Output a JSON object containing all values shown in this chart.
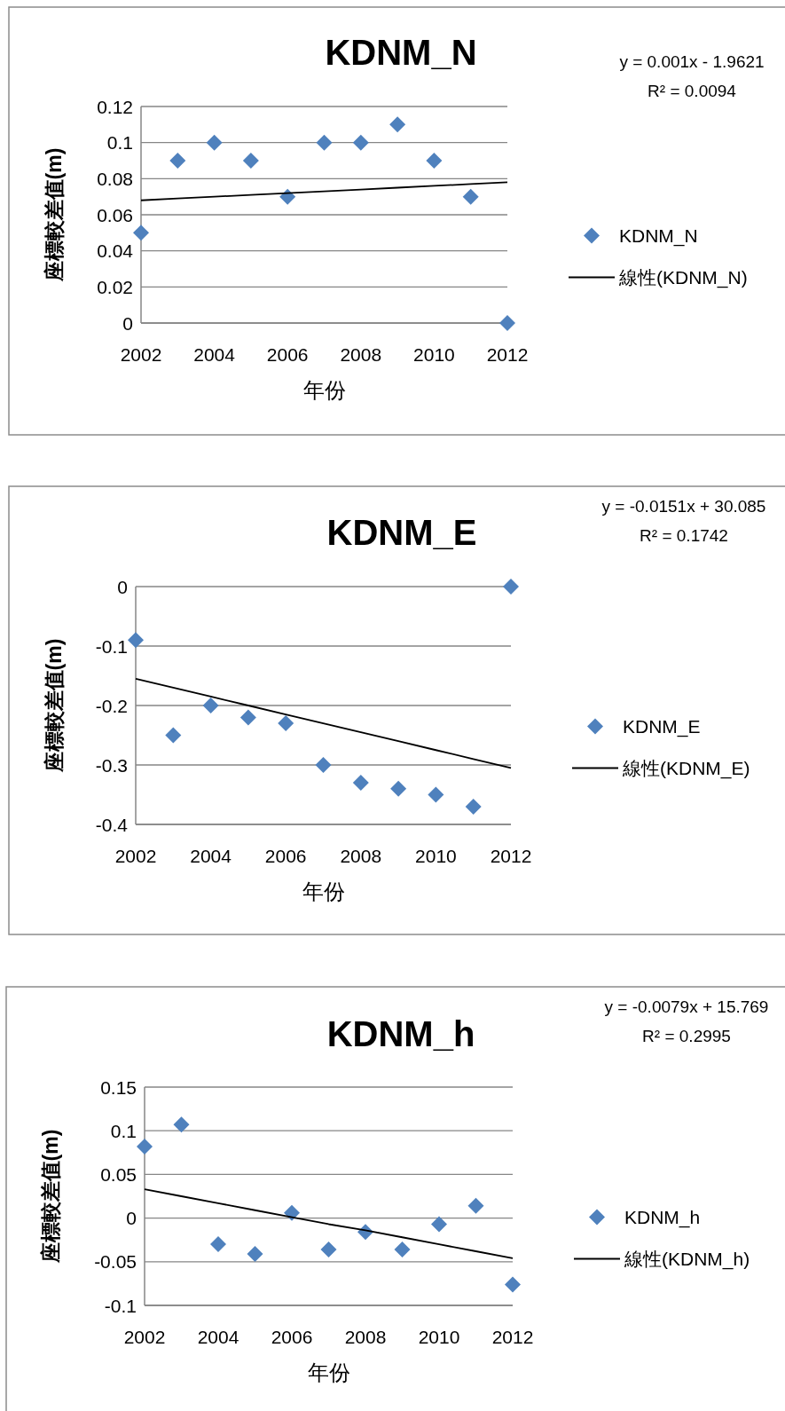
{
  "chart_data": [
    {
      "type": "scatter",
      "title": "KDNM_N",
      "xlabel": "年份",
      "ylabel": "座標較差值(m)",
      "annotations": [
        "y = 0.001x - 1.9621",
        "R² = 0.0094"
      ],
      "x": [
        2002,
        2003,
        2004,
        2005,
        2006,
        2007,
        2008,
        2009,
        2010,
        2011,
        2012
      ],
      "series": [
        {
          "name": "KDNM_N",
          "type": "scatter",
          "color": "#4f81bd",
          "marker": "diamond",
          "values": [
            0.05,
            0.09,
            0.1,
            0.09,
            0.07,
            0.1,
            0.1,
            0.11,
            0.09,
            0.07,
            0
          ]
        },
        {
          "name": "線性(KDNM_N)",
          "type": "line",
          "color": "#000000",
          "marker": "none",
          "line_style": "solid",
          "values": [
            0.068,
            0.069,
            0.07,
            0.071,
            0.072,
            0.073,
            0.074,
            0.075,
            0.076,
            0.077,
            0.078
          ]
        }
      ],
      "xlim": [
        2002,
        2012
      ],
      "xticks": [
        2002,
        2004,
        2006,
        2008,
        2010,
        2012
      ],
      "ylim": [
        0,
        0.12
      ],
      "yticks": [
        0,
        0.02,
        0.04,
        0.06,
        0.08,
        0.1,
        0.12
      ],
      "grid": "y",
      "legend": "right"
    },
    {
      "type": "scatter",
      "title": "KDNM_E",
      "xlabel": "年份",
      "ylabel": "座標較差值(m)",
      "annotations": [
        "y = -0.0151x + 30.085",
        "R² = 0.1742"
      ],
      "x": [
        2002,
        2003,
        2004,
        2005,
        2006,
        2007,
        2008,
        2009,
        2010,
        2011,
        2012
      ],
      "series": [
        {
          "name": "KDNM_E",
          "type": "scatter",
          "color": "#4f81bd",
          "marker": "diamond",
          "values": [
            -0.09,
            -0.25,
            -0.2,
            -0.22,
            -0.23,
            -0.3,
            -0.33,
            -0.34,
            -0.35,
            -0.37,
            0
          ]
        },
        {
          "name": "線性(KDNM_E)",
          "type": "line",
          "color": "#000000",
          "marker": "none",
          "line_style": "solid",
          "values": [
            -0.155,
            -0.17,
            -0.185,
            -0.2,
            -0.215,
            -0.23,
            -0.245,
            -0.26,
            -0.275,
            -0.29,
            -0.305
          ]
        }
      ],
      "xlim": [
        2002,
        2012
      ],
      "xticks": [
        2002,
        2004,
        2006,
        2008,
        2010,
        2012
      ],
      "ylim": [
        -0.4,
        0
      ],
      "yticks": [
        -0.4,
        -0.3,
        -0.2,
        -0.1,
        0
      ],
      "grid": "y",
      "legend": "right"
    },
    {
      "type": "scatter",
      "title": "KDNM_h",
      "xlabel": "年份",
      "ylabel": "座標較差值(m)",
      "annotations": [
        "y = -0.0079x + 15.769",
        "R² = 0.2995"
      ],
      "x": [
        2002,
        2003,
        2004,
        2005,
        2006,
        2007,
        2008,
        2009,
        2010,
        2011,
        2012
      ],
      "series": [
        {
          "name": "KDNM_h",
          "type": "scatter",
          "color": "#4f81bd",
          "marker": "diamond",
          "values": [
            0.082,
            0.107,
            -0.03,
            -0.041,
            0.006,
            -0.036,
            -0.016,
            -0.036,
            -0.007,
            0.014,
            -0.076
          ]
        },
        {
          "name": "線性(KDNM_h)",
          "type": "line",
          "color": "#000000",
          "marker": "none",
          "line_style": "solid",
          "values": [
            0.033,
            0.025,
            0.017,
            0.009,
            0.001,
            -0.007,
            -0.014,
            -0.022,
            -0.03,
            -0.038,
            -0.046
          ]
        }
      ],
      "xlim": [
        2002,
        2012
      ],
      "xticks": [
        2002,
        2004,
        2006,
        2008,
        2010,
        2012
      ],
      "ylim": [
        -0.1,
        0.15
      ],
      "yticks": [
        -0.1,
        -0.05,
        0,
        0.05,
        0.1,
        0.15
      ],
      "grid": "y",
      "legend": "right"
    }
  ]
}
